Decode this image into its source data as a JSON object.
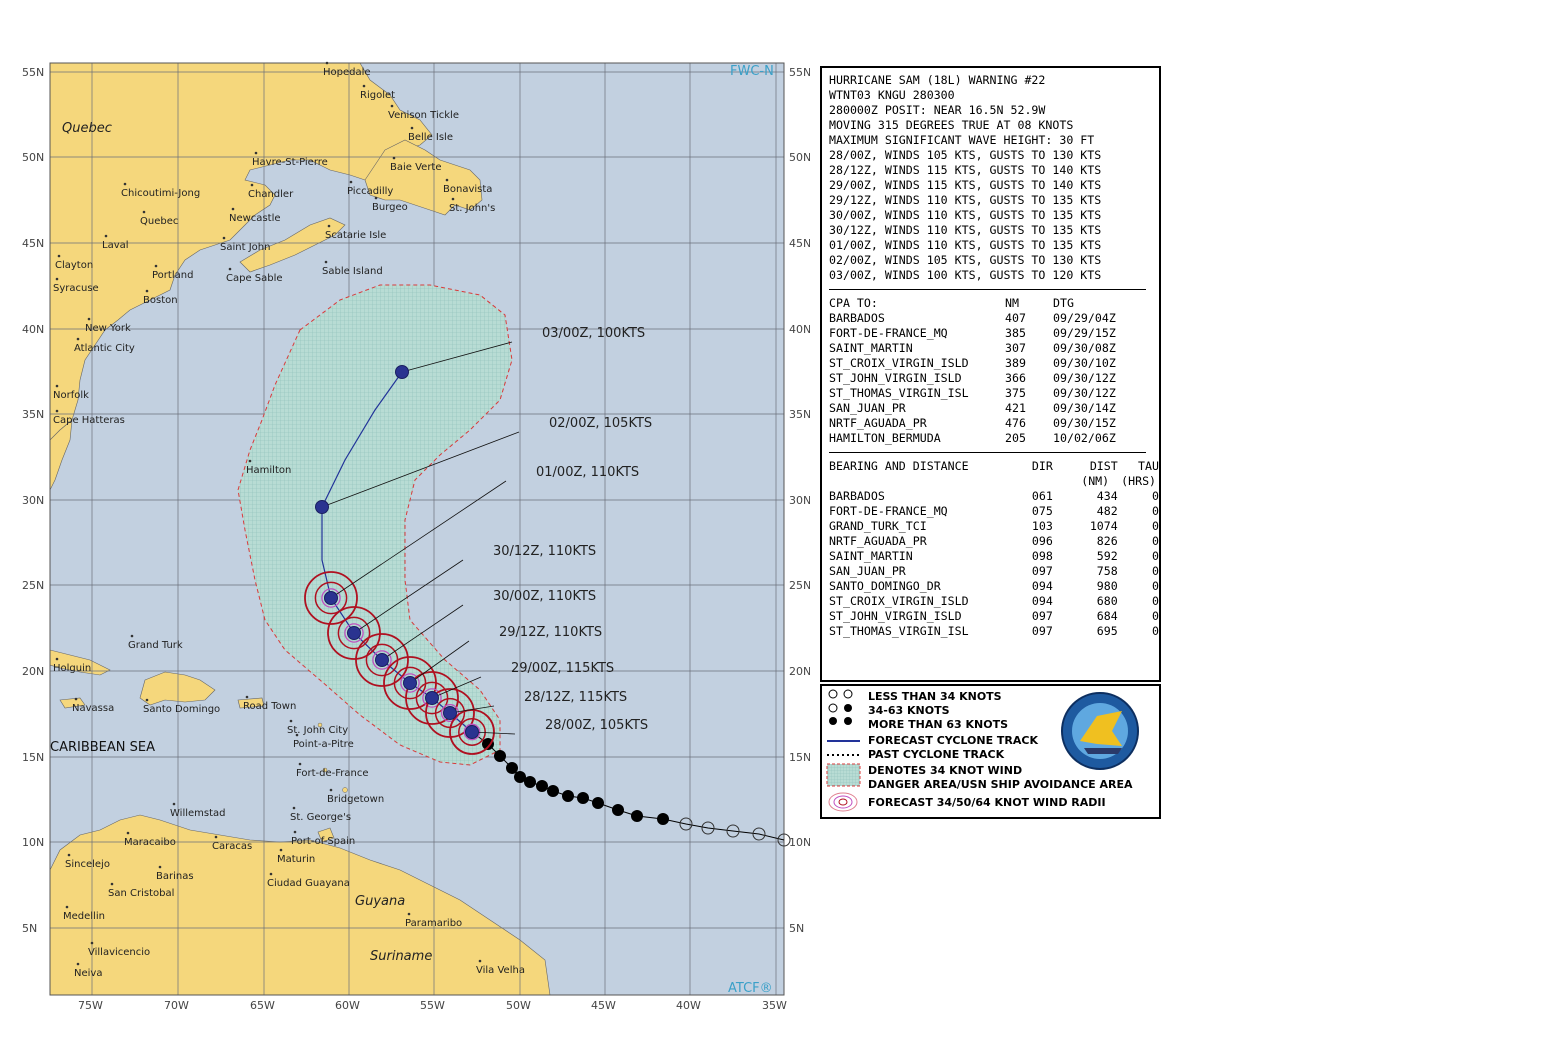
{
  "map": {
    "lat_labels": [
      "55N",
      "50N",
      "45N",
      "40N",
      "35N",
      "30N",
      "25N",
      "20N",
      "15N",
      "10N",
      "5N"
    ],
    "lon_labels": [
      "75W",
      "70W",
      "65W",
      "60W",
      "55W",
      "50W",
      "45W",
      "40W",
      "35W"
    ],
    "brand_top": "FWC-N",
    "brand_bottom": "ATCF®",
    "regions": [
      "Quebec",
      "Guyana",
      "Suriname"
    ],
    "sea_label": "CARIBBEAN SEA",
    "places": [
      "Hopedale",
      "Rigolet",
      "Venison Tickle",
      "Belle Isle",
      "Havre-St-Pierre",
      "Baie Verte",
      "Chicoutimi-Jong",
      "Chandler",
      "Piccadilly",
      "Bonavista",
      "Quebec",
      "Newcastle",
      "Burgeo",
      "St. John's",
      "Laval",
      "Saint John",
      "Scatarie Isle",
      "Clayton",
      "Portland",
      "Cape Sable",
      "Sable Island",
      "Syracuse",
      "Boston",
      "New York",
      "Atlantic City",
      "Norfolk",
      "Cape Hatteras",
      "Hamilton",
      "Grand Turk",
      "Holguin",
      "Navassa",
      "Santo Domingo",
      "Road Town",
      "St. John City",
      "Point-a-Pitre",
      "Fort-de-France",
      "Bridgetown",
      "Willemstad",
      "St. George's",
      "Maracaibo",
      "Caracas",
      "Port-of-Spain",
      "Sincelejo",
      "Barinas",
      "Maturin",
      "San Cristobal",
      "Ciudad Guayana",
      "Medellin",
      "Paramaribo",
      "Villavicencio",
      "Neiva",
      "Vila Velha"
    ],
    "forecast_labels": [
      "03/00Z, 100KTS",
      "02/00Z, 105KTS",
      "01/00Z, 110KTS",
      "30/12Z, 110KTS",
      "30/00Z, 110KTS",
      "29/12Z, 110KTS",
      "29/00Z, 115KTS",
      "28/12Z, 115KTS",
      "28/00Z, 105KTS"
    ]
  },
  "warning": {
    "header": [
      "HURRICANE SAM (18L) WARNING #22",
      "WTNT03 KNGU 280300",
      "280000Z POSIT: NEAR 16.5N 52.9W",
      "MOVING 315 DEGREES TRUE AT 08 KNOTS",
      "MAXIMUM SIGNIFICANT WAVE HEIGHT: 30 FT",
      "28/00Z, WINDS 105 KTS, GUSTS TO 130 KTS",
      "28/12Z, WINDS 115 KTS, GUSTS TO 140 KTS",
      "29/00Z, WINDS 115 KTS, GUSTS TO 140 KTS",
      "29/12Z, WINDS 110 KTS, GUSTS TO 135 KTS",
      "30/00Z, WINDS 110 KTS, GUSTS TO 135 KTS",
      "30/12Z, WINDS 110 KTS, GUSTS TO 135 KTS",
      "01/00Z, WINDS 110 KTS, GUSTS TO 135 KTS",
      "02/00Z, WINDS 105 KTS, GUSTS TO 130 KTS",
      "03/00Z, WINDS 100 KTS, GUSTS TO 120 KTS"
    ],
    "cpa": {
      "headers": [
        "CPA TO:",
        "NM",
        "DTG"
      ],
      "rows": [
        [
          "BARBADOS",
          "407",
          "09/29/04Z"
        ],
        [
          "FORT-DE-FRANCE_MQ",
          "385",
          "09/29/15Z"
        ],
        [
          "SAINT_MARTIN",
          "307",
          "09/30/08Z"
        ],
        [
          "ST_CROIX_VIRGIN_ISLD",
          "389",
          "09/30/10Z"
        ],
        [
          "ST_JOHN_VIRGIN_ISLD",
          "366",
          "09/30/12Z"
        ],
        [
          "ST_THOMAS_VIRGIN_ISL",
          "375",
          "09/30/12Z"
        ],
        [
          "SAN_JUAN_PR",
          "421",
          "09/30/14Z"
        ],
        [
          "NRTF_AGUADA_PR",
          "476",
          "09/30/15Z"
        ],
        [
          "HAMILTON_BERMUDA",
          "205",
          "10/02/06Z"
        ]
      ]
    },
    "bearing": {
      "headers": [
        "BEARING AND DISTANCE",
        "DIR",
        "DIST",
        "TAU"
      ],
      "subheaders": [
        "(NM)",
        "(HRS)"
      ],
      "rows": [
        [
          "BARBADOS",
          "061",
          "434",
          "0"
        ],
        [
          "FORT-DE-FRANCE_MQ",
          "075",
          "482",
          "0"
        ],
        [
          "GRAND_TURK_TCI",
          "103",
          "1074",
          "0"
        ],
        [
          "NRTF_AGUADA_PR",
          "096",
          "826",
          "0"
        ],
        [
          "SAINT_MARTIN",
          "098",
          "592",
          "0"
        ],
        [
          "SAN_JUAN_PR",
          "097",
          "758",
          "0"
        ],
        [
          "SANTO_DOMINGO_DR",
          "094",
          "980",
          "0"
        ],
        [
          "ST_CROIX_VIRGIN_ISLD",
          "094",
          "680",
          "0"
        ],
        [
          "ST_JOHN_VIRGIN_ISLD",
          "097",
          "684",
          "0"
        ],
        [
          "ST_THOMAS_VIRGIN_ISL",
          "097",
          "695",
          "0"
        ]
      ]
    }
  },
  "legend": {
    "items": [
      "LESS THAN 34 KNOTS",
      "34-63 KNOTS",
      "MORE THAN 63 KNOTS",
      "FORECAST CYCLONE TRACK",
      "PAST CYCLONE TRACK",
      "DENOTES 34 KNOT WIND",
      "DANGER AREA/USN SHIP AVOIDANCE AREA",
      "FORECAST 34/50/64 KNOT WIND RADII"
    ],
    "logo_text": "FLEET WEATHER CENTER NORFOLK"
  },
  "colors": {
    "ocean": "#c2d0e0",
    "land": "#f5d77c",
    "danger": "#d93a3a",
    "radii": "#b01020",
    "track": "#223399"
  }
}
